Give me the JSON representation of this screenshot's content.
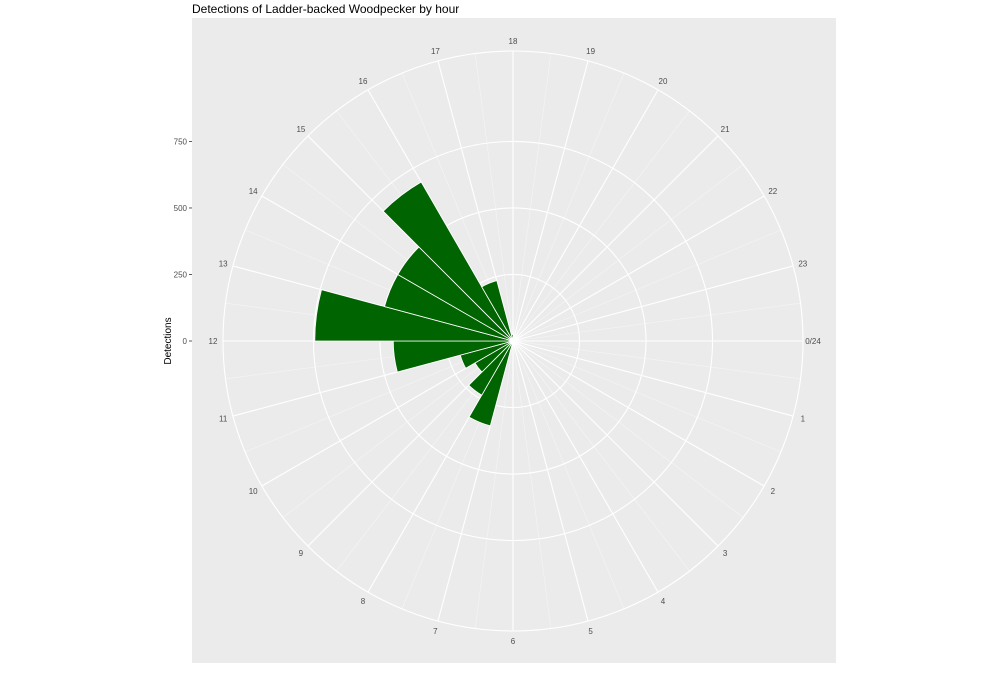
{
  "chart_data": {
    "type": "bar",
    "coordinate_system": "polar",
    "title": "Detections of Ladder-backed Woodpecker by hour",
    "xlabel": "",
    "ylabel": "Detections",
    "categories": [
      "0",
      "1",
      "2",
      "3",
      "4",
      "5",
      "6",
      "7",
      "8",
      "9",
      "10",
      "11",
      "12",
      "13",
      "14",
      "15",
      "16",
      "17",
      "18",
      "19",
      "20",
      "21",
      "22",
      "23"
    ],
    "theta_labels": [
      "0/24",
      "1",
      "2",
      "3",
      "4",
      "5",
      "6",
      "7",
      "8",
      "9",
      "10",
      "11",
      "12",
      "13",
      "14",
      "15",
      "16",
      "17",
      "18",
      "19",
      "20",
      "21",
      "22",
      "23"
    ],
    "values": [
      0,
      0,
      0,
      0,
      0,
      0,
      0,
      330,
      235,
      165,
      205,
      450,
      745,
      500,
      500,
      690,
      235,
      25,
      0,
      0,
      0,
      0,
      0,
      0
    ],
    "y_ticks": [
      0,
      250,
      500,
      750
    ],
    "ylim": [
      0,
      1090
    ],
    "bar_color": "#006400",
    "grid": true
  }
}
